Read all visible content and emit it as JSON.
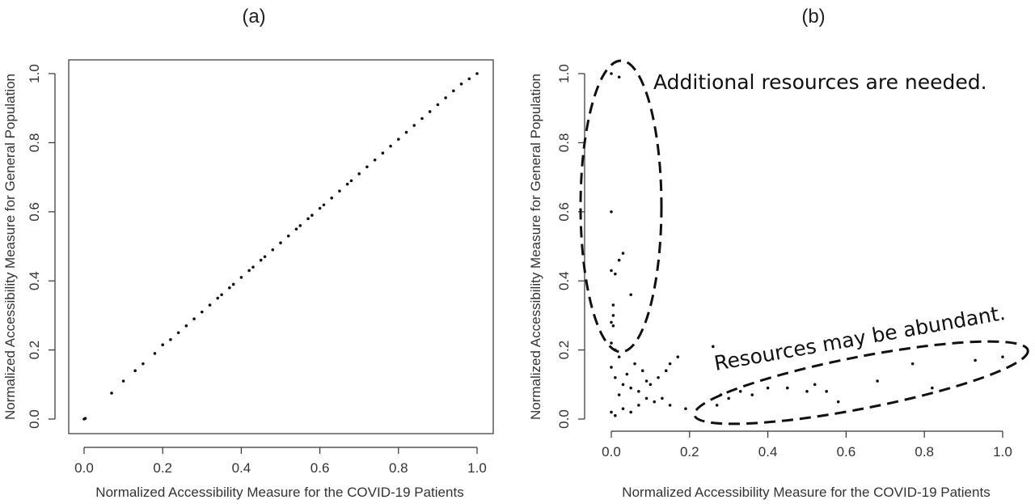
{
  "chart_data": [
    {
      "type": "scatter",
      "title": "(a)",
      "xlabel": "Normalized Accessibility Measure for the COVID-19 Patients",
      "ylabel": "Normalized Accessibility Measure for General Population",
      "xlim": [
        0,
        1
      ],
      "ylim": [
        0,
        1
      ],
      "x_ticks": [
        "0.0",
        "0.2",
        "0.4",
        "0.6",
        "0.8",
        "1.0"
      ],
      "y_ticks": [
        "0.0",
        "0.2",
        "0.4",
        "0.6",
        "0.8",
        "1.0"
      ],
      "grid": false,
      "point_color": "#111111",
      "series": [
        {
          "points": [
            [
              0.0,
              0.0
            ],
            [
              0.003,
              0.002
            ],
            [
              0.07,
              0.075
            ],
            [
              0.1,
              0.11
            ],
            [
              0.13,
              0.14
            ],
            [
              0.15,
              0.16
            ],
            [
              0.18,
              0.19
            ],
            [
              0.2,
              0.215
            ],
            [
              0.22,
              0.23
            ],
            [
              0.24,
              0.25
            ],
            [
              0.26,
              0.27
            ],
            [
              0.28,
              0.29
            ],
            [
              0.3,
              0.31
            ],
            [
              0.32,
              0.33
            ],
            [
              0.34,
              0.35
            ],
            [
              0.35,
              0.36
            ],
            [
              0.37,
              0.38
            ],
            [
              0.38,
              0.39
            ],
            [
              0.4,
              0.41
            ],
            [
              0.42,
              0.43
            ],
            [
              0.43,
              0.44
            ],
            [
              0.45,
              0.46
            ],
            [
              0.46,
              0.47
            ],
            [
              0.48,
              0.49
            ],
            [
              0.5,
              0.51
            ],
            [
              0.52,
              0.53
            ],
            [
              0.54,
              0.55
            ],
            [
              0.55,
              0.56
            ],
            [
              0.57,
              0.58
            ],
            [
              0.58,
              0.59
            ],
            [
              0.6,
              0.61
            ],
            [
              0.61,
              0.62
            ],
            [
              0.63,
              0.64
            ],
            [
              0.65,
              0.66
            ],
            [
              0.67,
              0.68
            ],
            [
              0.68,
              0.69
            ],
            [
              0.7,
              0.71
            ],
            [
              0.72,
              0.73
            ],
            [
              0.74,
              0.75
            ],
            [
              0.76,
              0.77
            ],
            [
              0.78,
              0.79
            ],
            [
              0.8,
              0.81
            ],
            [
              0.82,
              0.83
            ],
            [
              0.84,
              0.85
            ],
            [
              0.86,
              0.87
            ],
            [
              0.88,
              0.89
            ],
            [
              0.9,
              0.91
            ],
            [
              0.92,
              0.93
            ],
            [
              0.94,
              0.95
            ],
            [
              0.96,
              0.97
            ],
            [
              0.98,
              0.985
            ],
            [
              1.0,
              1.0
            ]
          ]
        }
      ]
    },
    {
      "type": "scatter",
      "title": "(b)",
      "xlabel": "Normalized Accessibility Measure for the COVID-19 Patients",
      "ylabel": "Normalized Accessibility Measure for General Population",
      "xlim": [
        0,
        1
      ],
      "ylim": [
        0,
        1
      ],
      "x_ticks": [
        "0.0",
        "0.2",
        "0.4",
        "0.6",
        "0.8",
        "1.0"
      ],
      "y_ticks": [
        "0.0",
        "0.2",
        "0.4",
        "0.6",
        "0.8",
        "1.0"
      ],
      "grid": false,
      "point_color": "#111111",
      "annotations": [
        {
          "text": "Additional resources are needed.",
          "near": "top-left ellipse"
        },
        {
          "text": "Resources may be abundant.",
          "near": "bottom-right ellipse"
        }
      ],
      "series": [
        {
          "points": [
            [
              0.0,
              1.0
            ],
            [
              0.02,
              0.99
            ],
            [
              0.0,
              0.6
            ],
            [
              0.0,
              0.43
            ],
            [
              0.01,
              0.42
            ],
            [
              0.02,
              0.46
            ],
            [
              0.03,
              0.48
            ],
            [
              0.05,
              0.36
            ],
            [
              0.005,
              0.33
            ],
            [
              0.005,
              0.3
            ],
            [
              0.0,
              0.28
            ],
            [
              0.005,
              0.27
            ],
            [
              0.0,
              0.22
            ],
            [
              0.01,
              0.2
            ],
            [
              0.02,
              0.18
            ],
            [
              0.0,
              0.15
            ],
            [
              0.01,
              0.12
            ],
            [
              0.03,
              0.1
            ],
            [
              0.05,
              0.09
            ],
            [
              0.07,
              0.08
            ],
            [
              0.09,
              0.06
            ],
            [
              0.11,
              0.05
            ],
            [
              0.13,
              0.06
            ],
            [
              0.15,
              0.04
            ],
            [
              0.17,
              0.18
            ],
            [
              0.15,
              0.16
            ],
            [
              0.14,
              0.14
            ],
            [
              0.12,
              0.12
            ],
            [
              0.1,
              0.1
            ],
            [
              0.08,
              0.14
            ],
            [
              0.06,
              0.16
            ],
            [
              0.04,
              0.13
            ],
            [
              0.02,
              0.07
            ],
            [
              0.0,
              0.02
            ],
            [
              0.01,
              0.01
            ],
            [
              0.03,
              0.03
            ],
            [
              0.05,
              0.02
            ],
            [
              0.07,
              0.04
            ],
            [
              0.09,
              0.11
            ],
            [
              0.19,
              0.03
            ],
            [
              0.26,
              0.21
            ],
            [
              0.27,
              0.04
            ],
            [
              0.28,
              0.07
            ],
            [
              0.3,
              0.06
            ],
            [
              0.33,
              0.08
            ],
            [
              0.36,
              0.07
            ],
            [
              0.4,
              0.09
            ],
            [
              0.45,
              0.09
            ],
            [
              0.5,
              0.08
            ],
            [
              0.52,
              0.1
            ],
            [
              0.55,
              0.08
            ],
            [
              0.58,
              0.05
            ],
            [
              0.68,
              0.11
            ],
            [
              0.77,
              0.16
            ],
            [
              0.82,
              0.09
            ],
            [
              0.93,
              0.17
            ],
            [
              1.0,
              0.18
            ]
          ]
        }
      ]
    }
  ]
}
